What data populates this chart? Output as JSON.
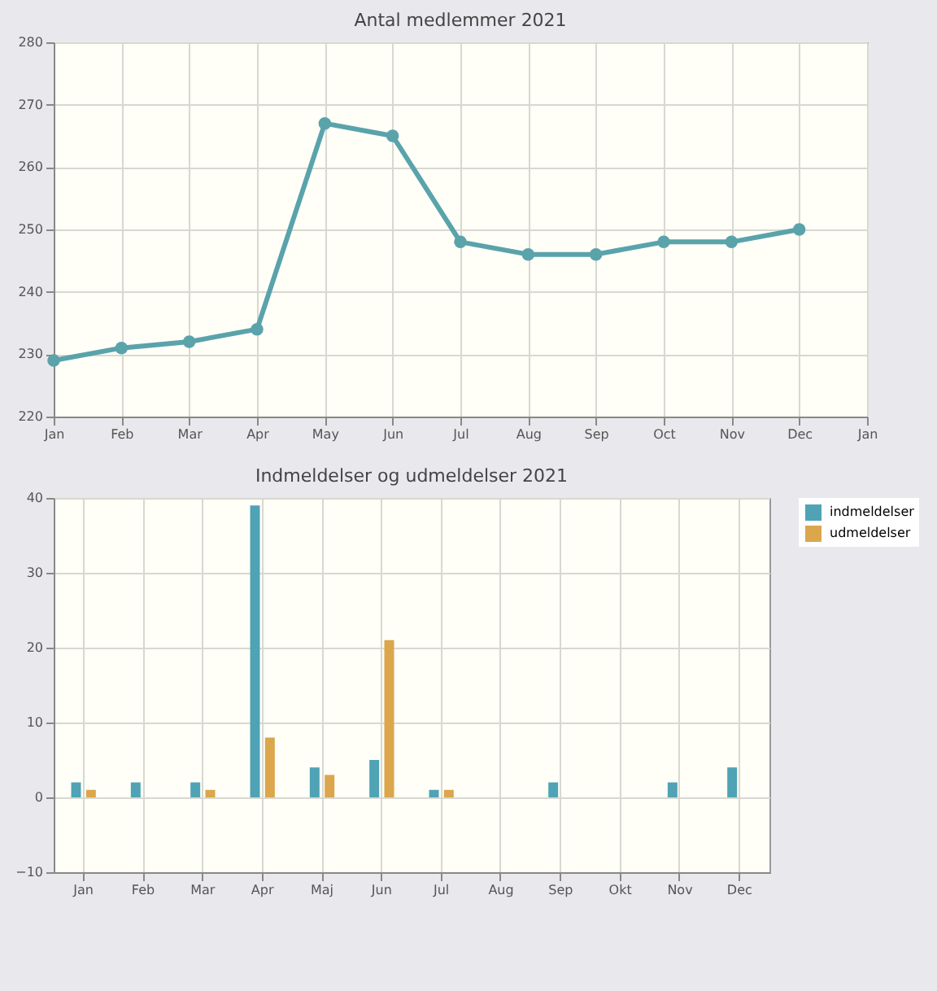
{
  "chart_data": [
    {
      "type": "line",
      "title": "Antal medlemmer 2021",
      "categories": [
        "Jan",
        "Feb",
        "Mar",
        "Apr",
        "May",
        "Jun",
        "Jul",
        "Aug",
        "Sep",
        "Oct",
        "Nov",
        "Dec",
        "Jan"
      ],
      "series": [
        {
          "color": "#5aa3ab",
          "values": [
            229,
            231,
            232,
            234,
            267,
            265,
            248,
            246,
            246,
            248,
            248,
            250,
            null
          ]
        }
      ],
      "ylim": [
        220,
        280
      ],
      "yticks": [
        220,
        230,
        240,
        250,
        260,
        270,
        280
      ],
      "grid": true,
      "marker": "circle",
      "line_style": "solid"
    },
    {
      "type": "bar",
      "title": "Indmeldelser og udmeldelser 2021",
      "categories": [
        "Jan",
        "Feb",
        "Mar",
        "Apr",
        "Maj",
        "Jun",
        "Jul",
        "Aug",
        "Sep",
        "Okt",
        "Nov",
        "Dec"
      ],
      "series": [
        {
          "name": "indmeldelser",
          "color": "#4fa3b5",
          "values": [
            2,
            2,
            2,
            39,
            4,
            5,
            1,
            0,
            2,
            0,
            2,
            4
          ]
        },
        {
          "name": "udmeldelser",
          "color": "#dca64c",
          "values": [
            1,
            0,
            1,
            8,
            3,
            21,
            1,
            0,
            0,
            0,
            0,
            0
          ]
        }
      ],
      "ylim": [
        -10,
        40
      ],
      "yticks": [
        -10,
        0,
        10,
        20,
        30,
        40
      ],
      "grid": true,
      "legend": "top right"
    }
  ]
}
